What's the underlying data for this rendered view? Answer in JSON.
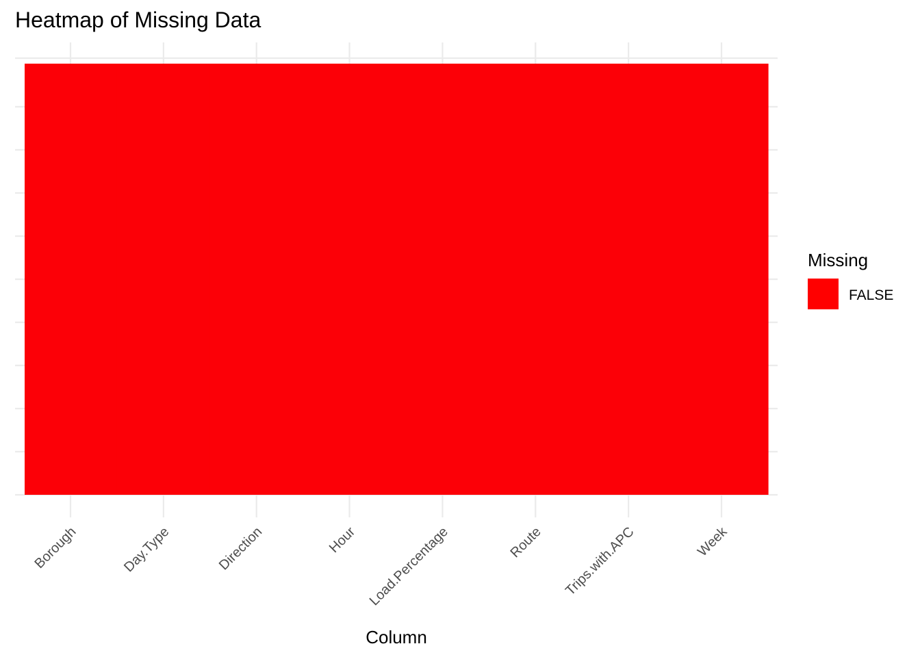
{
  "chart_data": {
    "type": "heatmap",
    "title": "Heatmap of Missing Data",
    "xlabel": "Column",
    "ylabel": "",
    "categories": [
      "Borough",
      "Day.Type",
      "Direction",
      "Hour",
      "Load.Percentage",
      "Route",
      "Trips.with.APC",
      "Week"
    ],
    "values": [
      "FALSE",
      "FALSE",
      "FALSE",
      "FALSE",
      "FALSE",
      "FALSE",
      "FALSE",
      "FALSE"
    ],
    "legend": {
      "title": "Missing",
      "position": "right",
      "entries": [
        {
          "label": "FALSE",
          "color": "#ff0000"
        }
      ]
    },
    "grid": true,
    "colors": {
      "FALSE": "#fc0007",
      "grid": "#ebebeb"
    }
  }
}
